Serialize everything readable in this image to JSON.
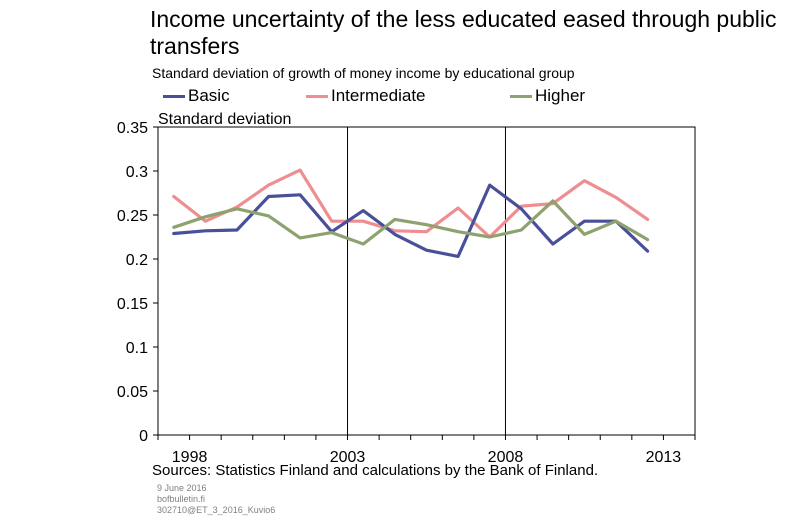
{
  "title": "Income uncertainty of the less educated eased through public transfers",
  "subtitle": "Standard deviation of growth of money income by educational group",
  "sources": "Sources: Statistics Finland and calculations by the Bank of Finland.",
  "footer": {
    "date": "9 June 2016",
    "site": "bofbulletin.fi",
    "code": "302710@ET_3_2016_Kuvio6"
  },
  "colors": {
    "basic": "#4a4f9a",
    "intermediate": "#ee8e91",
    "higher": "#8da26f"
  },
  "chart_data": {
    "type": "line",
    "ylabel": "Standard deviation",
    "ylim": [
      0,
      0.35
    ],
    "yticks": [
      "0",
      "0.05",
      "0.1",
      "0.15",
      "0.2",
      "0.25",
      "0.3",
      "0.35"
    ],
    "xlim": [
      1997,
      2014
    ],
    "xticks": [
      "1998",
      "2003",
      "2008",
      "2013"
    ],
    "x": [
      1997.5,
      1998.5,
      1999.5,
      2000.5,
      2001.5,
      2002.5,
      2003.5,
      2004.5,
      2005.5,
      2006.5,
      2007.5,
      2008.5,
      2009.5,
      2010.5,
      2011.5,
      2012.5
    ],
    "legend": "top",
    "grid": "vertical lines at 2003 and 2008",
    "series": [
      {
        "name": "Basic",
        "values": [
          0.229,
          0.232,
          0.233,
          0.271,
          0.273,
          0.231,
          0.255,
          0.228,
          0.21,
          0.203,
          0.284,
          0.257,
          0.217,
          0.243,
          0.243,
          0.209
        ]
      },
      {
        "name": "Intermediate",
        "values": [
          0.271,
          0.243,
          0.259,
          0.284,
          0.301,
          0.243,
          0.243,
          0.232,
          0.231,
          0.258,
          0.225,
          0.26,
          0.263,
          0.289,
          0.27,
          0.245
        ]
      },
      {
        "name": "Higher",
        "values": [
          0.236,
          0.248,
          0.257,
          0.249,
          0.224,
          0.23,
          0.217,
          0.245,
          0.239,
          0.231,
          0.225,
          0.233,
          0.266,
          0.228,
          0.243,
          0.222
        ]
      }
    ]
  }
}
